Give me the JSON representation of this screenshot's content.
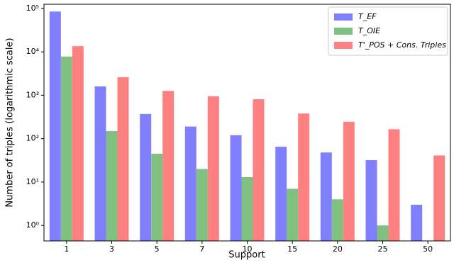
{
  "chart_data": {
    "type": "bar",
    "x_label": "Support",
    "y_label": "Number of triples (logarithmic scale)",
    "categories": [
      "1",
      "3",
      "5",
      "7",
      "10",
      "15",
      "20",
      "25",
      "50"
    ],
    "series": [
      {
        "name": "T_EF",
        "color": "#8080ff",
        "values": [
          85000,
          1600,
          370,
          190,
          120,
          65,
          48,
          32,
          3
        ]
      },
      {
        "name": "T_OIE",
        "color": "#80c080",
        "values": [
          7800,
          150,
          45,
          20,
          13,
          7,
          4,
          1,
          null
        ]
      },
      {
        "name": "T'_POS + Cons. Triples",
        "color": "#ff8080",
        "values": [
          13500,
          2600,
          1260,
          950,
          810,
          380,
          245,
          165,
          41
        ]
      }
    ],
    "log_scale": true,
    "ylim": [
      0.44,
      125000
    ],
    "yticks": [
      {
        "value": 1,
        "label": "10⁰"
      },
      {
        "value": 10,
        "label": "10¹"
      },
      {
        "value": 100,
        "label": "10²"
      },
      {
        "value": 1000,
        "label": "10³"
      },
      {
        "value": 10000,
        "label": "10⁴"
      },
      {
        "value": 100000,
        "label": "10⁵"
      }
    ],
    "grid": false,
    "legend": "upper right"
  }
}
